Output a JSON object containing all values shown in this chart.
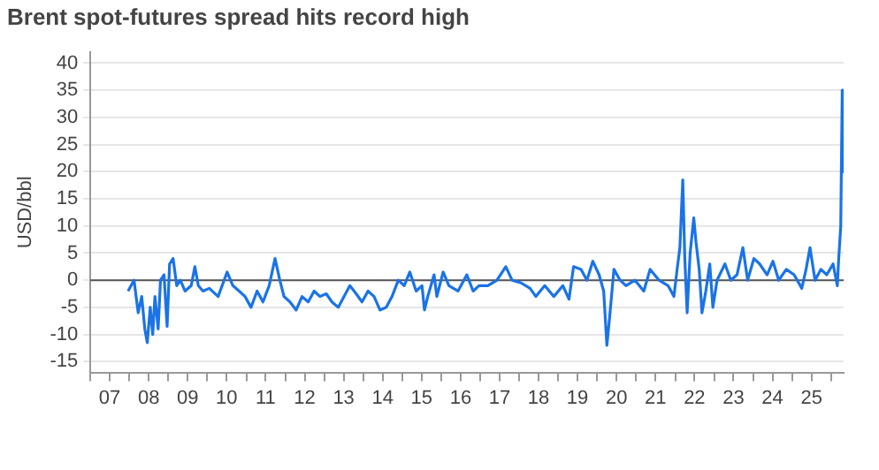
{
  "chart_data": {
    "type": "line",
    "title": "Brent spot-futures spread hits record high",
    "ylabel": "USD/bbl",
    "x": [
      "2007-12-20",
      "2008-02-14",
      "2008-03-24",
      "2008-04-26",
      "2008-05-25",
      "2008-06-17",
      "2008-07-15",
      "2008-08-07",
      "2008-08-28",
      "2008-09-27",
      "2008-10-19",
      "2008-11-21",
      "2008-12-20",
      "2009-01-12",
      "2009-02-14",
      "2009-03-20",
      "2009-04-23",
      "2009-06-06",
      "2009-08-03",
      "2009-09-06",
      "2009-10-08",
      "2009-11-21",
      "2010-01-19",
      "2010-04-12",
      "2010-07-05",
      "2010-08-28",
      "2010-10-26",
      "2010-12-20",
      "2011-02-14",
      "2011-04-12",
      "2011-06-06",
      "2011-08-03",
      "2011-09-27",
      "2011-11-11",
      "2011-12-20",
      "2012-02-14",
      "2012-04-12",
      "2012-06-06",
      "2012-08-03",
      "2012-09-27",
      "2012-11-21",
      "2013-01-19",
      "2013-03-13",
      "2013-05-11",
      "2013-07-05",
      "2013-08-28",
      "2013-10-26",
      "2013-12-20",
      "2014-02-14",
      "2014-04-12",
      "2014-06-06",
      "2014-08-03",
      "2014-09-27",
      "2014-11-25",
      "2015-01-19",
      "2015-03-13",
      "2015-05-11",
      "2015-07-05",
      "2015-07-28",
      "2015-08-28",
      "2015-10-26",
      "2015-11-21",
      "2016-01-19",
      "2016-03-13",
      "2016-06-06",
      "2016-08-28",
      "2016-10-26",
      "2016-12-20",
      "2017-03-13",
      "2017-06-06",
      "2017-08-28",
      "2017-10-26",
      "2018-01-19",
      "2018-04-12",
      "2018-06-06",
      "2018-08-28",
      "2018-11-21",
      "2019-02-14",
      "2019-04-12",
      "2019-05-25",
      "2019-08-03",
      "2019-09-27",
      "2019-11-21",
      "2020-01-19",
      "2020-03-02",
      "2020-04-01",
      "2020-04-26",
      "2020-06-06",
      "2020-08-03",
      "2020-09-27",
      "2020-12-20",
      "2021-03-13",
      "2021-05-11",
      "2021-08-03",
      "2021-10-26",
      "2021-12-20",
      "2022-01-19",
      "2022-02-14",
      "2022-03-13",
      "2022-04-01",
      "2022-04-23",
      "2022-05-21",
      "2022-06-24",
      "2022-07-15",
      "2022-08-14",
      "2022-09-09",
      "2022-10-15",
      "2022-11-21",
      "2022-12-20",
      "2023-01-28",
      "2023-04-12",
      "2023-06-06",
      "2023-08-03",
      "2023-09-27",
      "2023-11-11",
      "2024-01-08",
      "2024-03-02",
      "2024-05-11",
      "2024-07-05",
      "2024-08-28",
      "2024-11-07",
      "2025-01-19",
      "2025-04-01",
      "2025-05-11",
      "2025-06-17",
      "2025-08-03",
      "2025-09-27",
      "2025-11-21",
      "2026-01-19",
      "2026-02-28",
      "2026-03-13",
      "2026-04-01",
      "2026-04-15",
      "2026-04-23"
    ],
    "series": [
      {
        "color": "#1a73e8",
        "values": [
          -2,
          0,
          -6,
          -3,
          -9,
          -11.5,
          -5,
          -10,
          -3,
          -9,
          0,
          1,
          -8.5,
          3,
          4,
          -1,
          0,
          -2,
          -1,
          2.5,
          -1,
          -2,
          -1.5,
          -3,
          1.5,
          -1,
          -2,
          -3,
          -5,
          -2,
          -4,
          -1,
          4,
          0,
          -3,
          -4,
          -5.5,
          -3,
          -4,
          -2,
          -3,
          -2.5,
          -4,
          -5,
          -3,
          -1,
          -2.5,
          -4,
          -2,
          -3,
          -5.5,
          -5,
          -3,
          0,
          -1,
          1.5,
          -2,
          -1,
          -5.5,
          -3,
          1,
          -3,
          1.5,
          -1,
          -2,
          1,
          -2,
          -1,
          -1,
          0,
          2.5,
          0,
          -0.5,
          -1.5,
          -3,
          -1,
          -3,
          -1,
          -3.5,
          2.5,
          2,
          0,
          3.5,
          1,
          -2,
          -12,
          -7,
          2,
          0,
          -1,
          0,
          -2,
          2,
          0,
          -1,
          -3,
          2,
          6,
          18.5,
          4,
          -6,
          5,
          11.5,
          7,
          2,
          -6,
          -2,
          3,
          -5,
          0,
          3,
          0,
          1,
          6,
          0,
          4,
          3,
          1,
          3.5,
          0,
          2,
          1,
          -1.5,
          2,
          6,
          0,
          2,
          1,
          3,
          -1,
          4,
          10,
          35,
          20
        ]
      }
    ],
    "xlim": [
      "2007-01-01",
      "2026-04-28"
    ],
    "xticks": [
      {
        "value": "2007-01-01",
        "label": null
      },
      {
        "value": "2007-07-01",
        "label": "07"
      },
      {
        "value": "2008-01-01",
        "label": null
      },
      {
        "value": "2008-07-01",
        "label": "08"
      },
      {
        "value": "2009-01-01",
        "label": null
      },
      {
        "value": "2009-07-01",
        "label": "09"
      },
      {
        "value": "2010-01-01",
        "label": null
      },
      {
        "value": "2010-07-01",
        "label": "10"
      },
      {
        "value": "2011-01-01",
        "label": null
      },
      {
        "value": "2011-07-01",
        "label": "11"
      },
      {
        "value": "2012-01-01",
        "label": null
      },
      {
        "value": "2012-07-01",
        "label": "12"
      },
      {
        "value": "2013-01-01",
        "label": null
      },
      {
        "value": "2013-07-01",
        "label": "13"
      },
      {
        "value": "2014-01-01",
        "label": null
      },
      {
        "value": "2014-07-01",
        "label": "14"
      },
      {
        "value": "2015-01-01",
        "label": null
      },
      {
        "value": "2015-07-01",
        "label": "15"
      },
      {
        "value": "2016-01-01",
        "label": null
      },
      {
        "value": "2016-07-01",
        "label": "16"
      },
      {
        "value": "2017-01-01",
        "label": null
      },
      {
        "value": "2017-07-01",
        "label": "17"
      },
      {
        "value": "2018-01-01",
        "label": null
      },
      {
        "value": "2018-07-01",
        "label": "18"
      },
      {
        "value": "2019-01-01",
        "label": null
      },
      {
        "value": "2019-07-01",
        "label": "19"
      },
      {
        "value": "2020-01-01",
        "label": null
      },
      {
        "value": "2020-07-01",
        "label": "20"
      },
      {
        "value": "2021-01-01",
        "label": null
      },
      {
        "value": "2021-07-01",
        "label": "21"
      },
      {
        "value": "2022-01-01",
        "label": null
      },
      {
        "value": "2022-07-01",
        "label": "22"
      },
      {
        "value": "2023-01-01",
        "label": null
      },
      {
        "value": "2023-07-01",
        "label": "23"
      },
      {
        "value": "2024-01-01",
        "label": null
      },
      {
        "value": "2024-07-01",
        "label": "24"
      },
      {
        "value": "2025-01-01",
        "label": null
      },
      {
        "value": "2025-07-01",
        "label": "25"
      },
      {
        "value": "2026-01-01",
        "label": null
      }
    ],
    "ylim": [
      -17,
      42
    ],
    "yticks": [
      -15,
      -10,
      -5,
      0,
      5,
      10,
      15,
      20,
      25,
      30,
      35,
      40
    ],
    "ref_lines": [
      {
        "axis": "y",
        "value": 0,
        "color": "#555555"
      }
    ],
    "grid": "y",
    "legend": false,
    "marker": "none",
    "line_style": "solid"
  }
}
